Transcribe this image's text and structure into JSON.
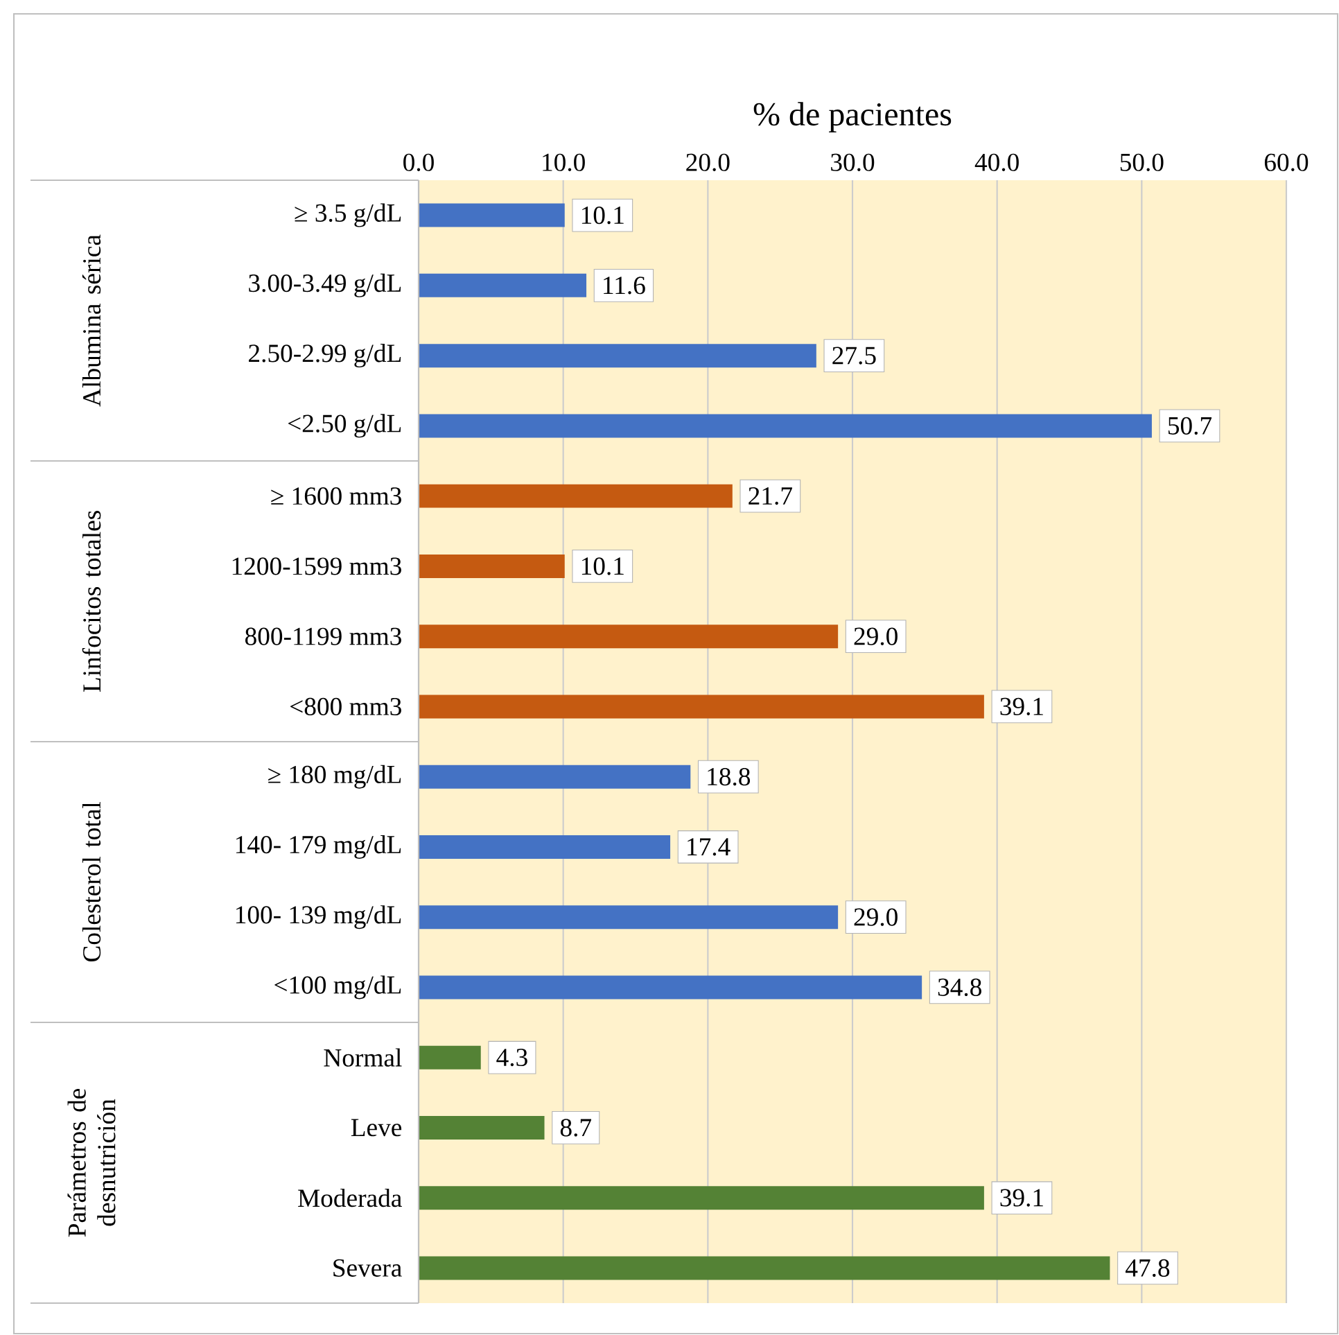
{
  "chart_data": {
    "type": "bar",
    "orientation": "horizontal",
    "xlabel": "% de pacientes",
    "categories": [
      "≥ 3.5 g/dL",
      "3.00-3.49 g/dL",
      "2.50-2.99 g/dL",
      "<2.50 g/dL",
      "≥ 1600 mm3",
      "1200-1599 mm3",
      "800-1199 mm3",
      "<800 mm3",
      "≥ 180 mg/dL",
      "140- 179 mg/dL",
      "100- 139 mg/dL",
      "<100 mg/dL",
      "Normal",
      "Leve",
      "Moderada",
      "Severa"
    ],
    "values": [
      10.1,
      11.6,
      27.5,
      50.7,
      21.7,
      10.1,
      29.0,
      39.1,
      18.8,
      17.4,
      29.0,
      34.8,
      4.3,
      8.7,
      39.1,
      47.8
    ],
    "value_labels": [
      "10.1",
      "11.6",
      "27.5",
      "50.7",
      "21.7",
      "10.1",
      "29.0",
      "39.1",
      "18.8",
      "17.4",
      "29.0",
      "34.8",
      "4.3",
      "8.7",
      "39.1",
      "47.8"
    ],
    "colors": [
      "#4472c4",
      "#4472c4",
      "#4472c4",
      "#4472c4",
      "#c55a11",
      "#c55a11",
      "#c55a11",
      "#c55a11",
      "#4472c4",
      "#4472c4",
      "#4472c4",
      "#4472c4",
      "#548235",
      "#548235",
      "#548235",
      "#548235"
    ],
    "xlim": [
      0,
      60
    ],
    "xticks": [
      {
        "value": 0,
        "label": "0.0"
      },
      {
        "value": 10,
        "label": "10.0"
      },
      {
        "value": 20,
        "label": "20.0"
      },
      {
        "value": 30,
        "label": "30.0"
      },
      {
        "value": 40,
        "label": "40.0"
      },
      {
        "value": 50,
        "label": "50.0"
      },
      {
        "value": 60,
        "label": "60.0"
      }
    ],
    "grid": "x",
    "annotations": [
      "Albumina sérica",
      "Linfocitos totales",
      "Colesterol total",
      "Parámetros de desnutrición"
    ]
  }
}
